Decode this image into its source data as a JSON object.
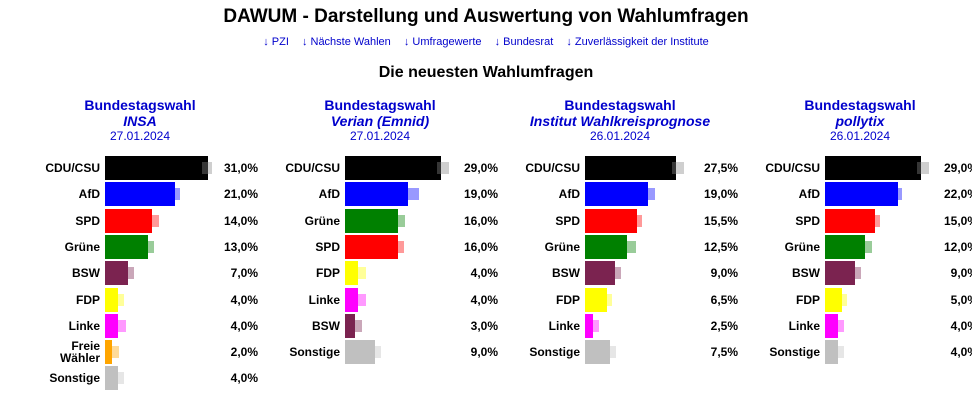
{
  "title": "DAWUM - Darstellung und Auswertung von Wahlumfragen",
  "nav": [
    {
      "label": "↓ PZI"
    },
    {
      "label": "↓ Nächste Wahlen"
    },
    {
      "label": "↓ Umfragewerte"
    },
    {
      "label": "↓ Bundesrat"
    },
    {
      "label": "↓ Zuverlässigkeit der Institute"
    }
  ],
  "subtitle": "Die neuesten Wahlumfragen",
  "colors": {
    "CDU/CSU": "#000000",
    "AfD": "#0000ff",
    "SPD": "#ff0000",
    "Grüne": "#008000",
    "BSW": "#7b2350",
    "FDP": "#ffff00",
    "Linke": "#ff00ff",
    "Freie Wähler": "#ffa500",
    "Sonstige": "#c0c0c0"
  },
  "chart_data": [
    {
      "type": "bar",
      "title": "Bundestagswahl",
      "institute": "INSA",
      "date": "27.01.2024",
      "xlim": [
        0,
        31
      ],
      "rows": [
        {
          "party": "CDU/CSU",
          "value": 31.0,
          "label": "31,0%",
          "previous": 30.5
        },
        {
          "party": "AfD",
          "value": 21.0,
          "label": "21,0%",
          "previous": 21.5
        },
        {
          "party": "SPD",
          "value": 14.0,
          "label": "14,0%",
          "previous": 15
        },
        {
          "party": "Grüne",
          "value": 13.0,
          "label": "13,0%",
          "previous": 13.5
        },
        {
          "party": "BSW",
          "value": 7.0,
          "label": "7,0%",
          "previous": 7.5
        },
        {
          "party": "FDP",
          "value": 4.0,
          "label": "4,0%",
          "previous": 4.5
        },
        {
          "party": "Linke",
          "value": 4.0,
          "label": "4,0%",
          "previous": 5
        },
        {
          "party": "Freie Wähler",
          "value": 2.0,
          "label": "2,0%",
          "previous": 3
        },
        {
          "party": "Sonstige",
          "value": 4.0,
          "label": "4,0%",
          "previous": 4.5
        }
      ]
    },
    {
      "type": "bar",
      "title": "Bundestagswahl",
      "institute": "Verian (Emnid)",
      "date": "27.01.2024",
      "xlim": [
        0,
        31
      ],
      "rows": [
        {
          "party": "CDU/CSU",
          "value": 29.0,
          "label": "29,0%",
          "previous": 30
        },
        {
          "party": "AfD",
          "value": 19.0,
          "label": "19,0%",
          "previous": 21
        },
        {
          "party": "Grüne",
          "value": 16.0,
          "label": "16,0%",
          "previous": 17
        },
        {
          "party": "SPD",
          "value": 16.0,
          "label": "16,0%",
          "previous": 16.5
        },
        {
          "party": "FDP",
          "value": 4.0,
          "label": "4,0%",
          "previous": 5
        },
        {
          "party": "Linke",
          "value": 4.0,
          "label": "4,0%",
          "previous": 5
        },
        {
          "party": "BSW",
          "value": 3.0,
          "label": "3,0%",
          "previous": 4
        },
        {
          "party": "Sonstige",
          "value": 9.0,
          "label": "9,0%",
          "previous": 9.5
        }
      ]
    },
    {
      "type": "bar",
      "title": "Bundestagswahl",
      "institute": "Institut Wahlkreisprognose",
      "date": "26.01.2024",
      "xlim": [
        0,
        31
      ],
      "rows": [
        {
          "party": "CDU/CSU",
          "value": 27.5,
          "label": "27,5%",
          "previous": 28.5
        },
        {
          "party": "AfD",
          "value": 19.0,
          "label": "19,0%",
          "previous": 20
        },
        {
          "party": "SPD",
          "value": 15.5,
          "label": "15,5%",
          "previous": 16
        },
        {
          "party": "Grüne",
          "value": 12.5,
          "label": "12,5%",
          "previous": 14
        },
        {
          "party": "BSW",
          "value": 9.0,
          "label": "9,0%",
          "previous": 9.5
        },
        {
          "party": "FDP",
          "value": 6.5,
          "label": "6,5%",
          "previous": 7
        },
        {
          "party": "Linke",
          "value": 2.5,
          "label": "2,5%",
          "previous": 3
        },
        {
          "party": "Sonstige",
          "value": 7.5,
          "label": "7,5%",
          "previous": 8
        }
      ]
    },
    {
      "type": "bar",
      "title": "Bundestagswahl",
      "institute": "pollytix",
      "date": "26.01.2024",
      "xlim": [
        0,
        31
      ],
      "rows": [
        {
          "party": "CDU/CSU",
          "value": 29.0,
          "label": "29,0%",
          "previous": 30
        },
        {
          "party": "AfD",
          "value": 22.0,
          "label": "22,0%",
          "previous": 21
        },
        {
          "party": "SPD",
          "value": 15.0,
          "label": "15,0%",
          "previous": 15.5
        },
        {
          "party": "Grüne",
          "value": 12.0,
          "label": "12,0%",
          "previous": 13
        },
        {
          "party": "BSW",
          "value": 9.0,
          "label": "9,0%",
          "previous": 9.5
        },
        {
          "party": "FDP",
          "value": 5.0,
          "label": "5,0%",
          "previous": 5.5
        },
        {
          "party": "Linke",
          "value": 4.0,
          "label": "4,0%",
          "previous": 4.5
        },
        {
          "party": "Sonstige",
          "value": 4.0,
          "label": "4,0%",
          "previous": 4.5
        }
      ]
    }
  ]
}
